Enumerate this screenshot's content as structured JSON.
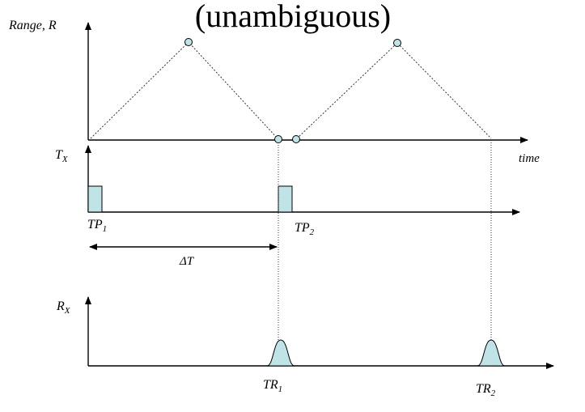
{
  "title": "(unambiguous)",
  "range_axis_label": "Range, R",
  "time_label": "time",
  "tx_label": {
    "main": "T",
    "sub": "X"
  },
  "rx_label": {
    "main": "R",
    "sub": "X"
  },
  "pulses": [
    {
      "main": "TP",
      "sub": "1"
    },
    {
      "main": "TP",
      "sub": "2"
    }
  ],
  "interval_label": "ΔT",
  "echoes": [
    {
      "main": "TR",
      "sub": "1"
    },
    {
      "main": "TR",
      "sub": "2"
    }
  ],
  "colors": {
    "fill": "#bfe3e6",
    "line": "#000000"
  }
}
